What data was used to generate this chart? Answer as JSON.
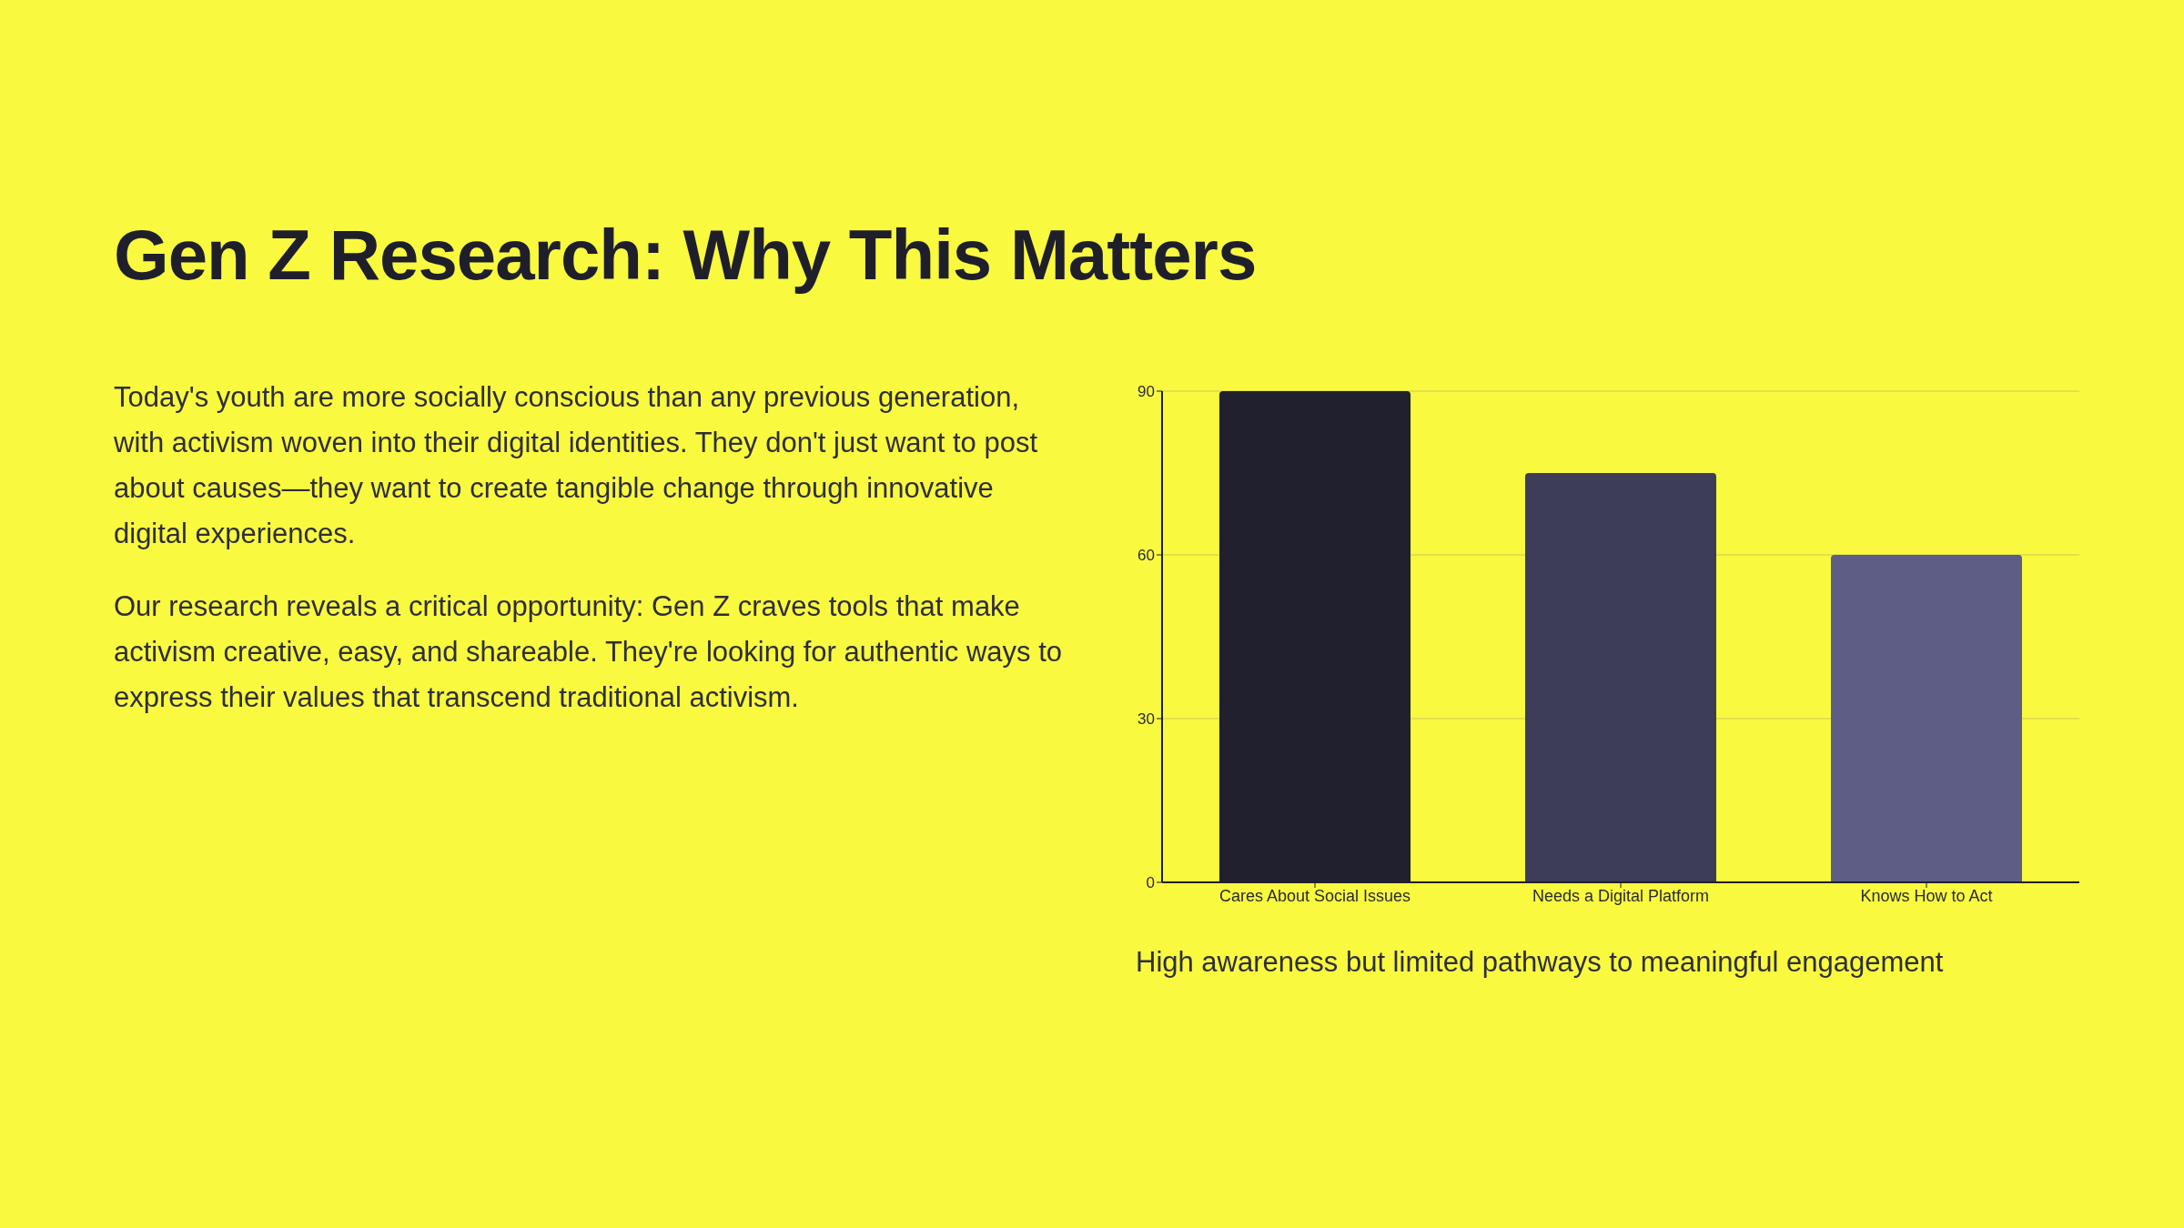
{
  "chart_data": {
    "type": "bar",
    "title": "Gen Z Research: Why This Matters",
    "categories": [
      "Cares About Social Issues",
      "Needs a Digital Platform",
      "Knows How to Act"
    ],
    "values": [
      90,
      75,
      60
    ],
    "colors": [
      "#20202f",
      "#3d3d57",
      "#5d5d86"
    ],
    "ylim": [
      0,
      90
    ],
    "yticks": [
      0,
      30,
      60,
      90
    ],
    "grid": "y",
    "annotations": [
      "Today's youth are more socially conscious than any previous generation, with activism woven into their digital identities. They don't just want to post about causes—they want to create tangible change through innovative digital experiences.",
      "Our research reveals a critical opportunity: Gen Z craves tools that make activism creative, easy, and shareable. They're looking for authentic ways to express their values that transcend traditional activism.",
      "High awareness but limited pathways to meaningful engagement"
    ]
  }
}
